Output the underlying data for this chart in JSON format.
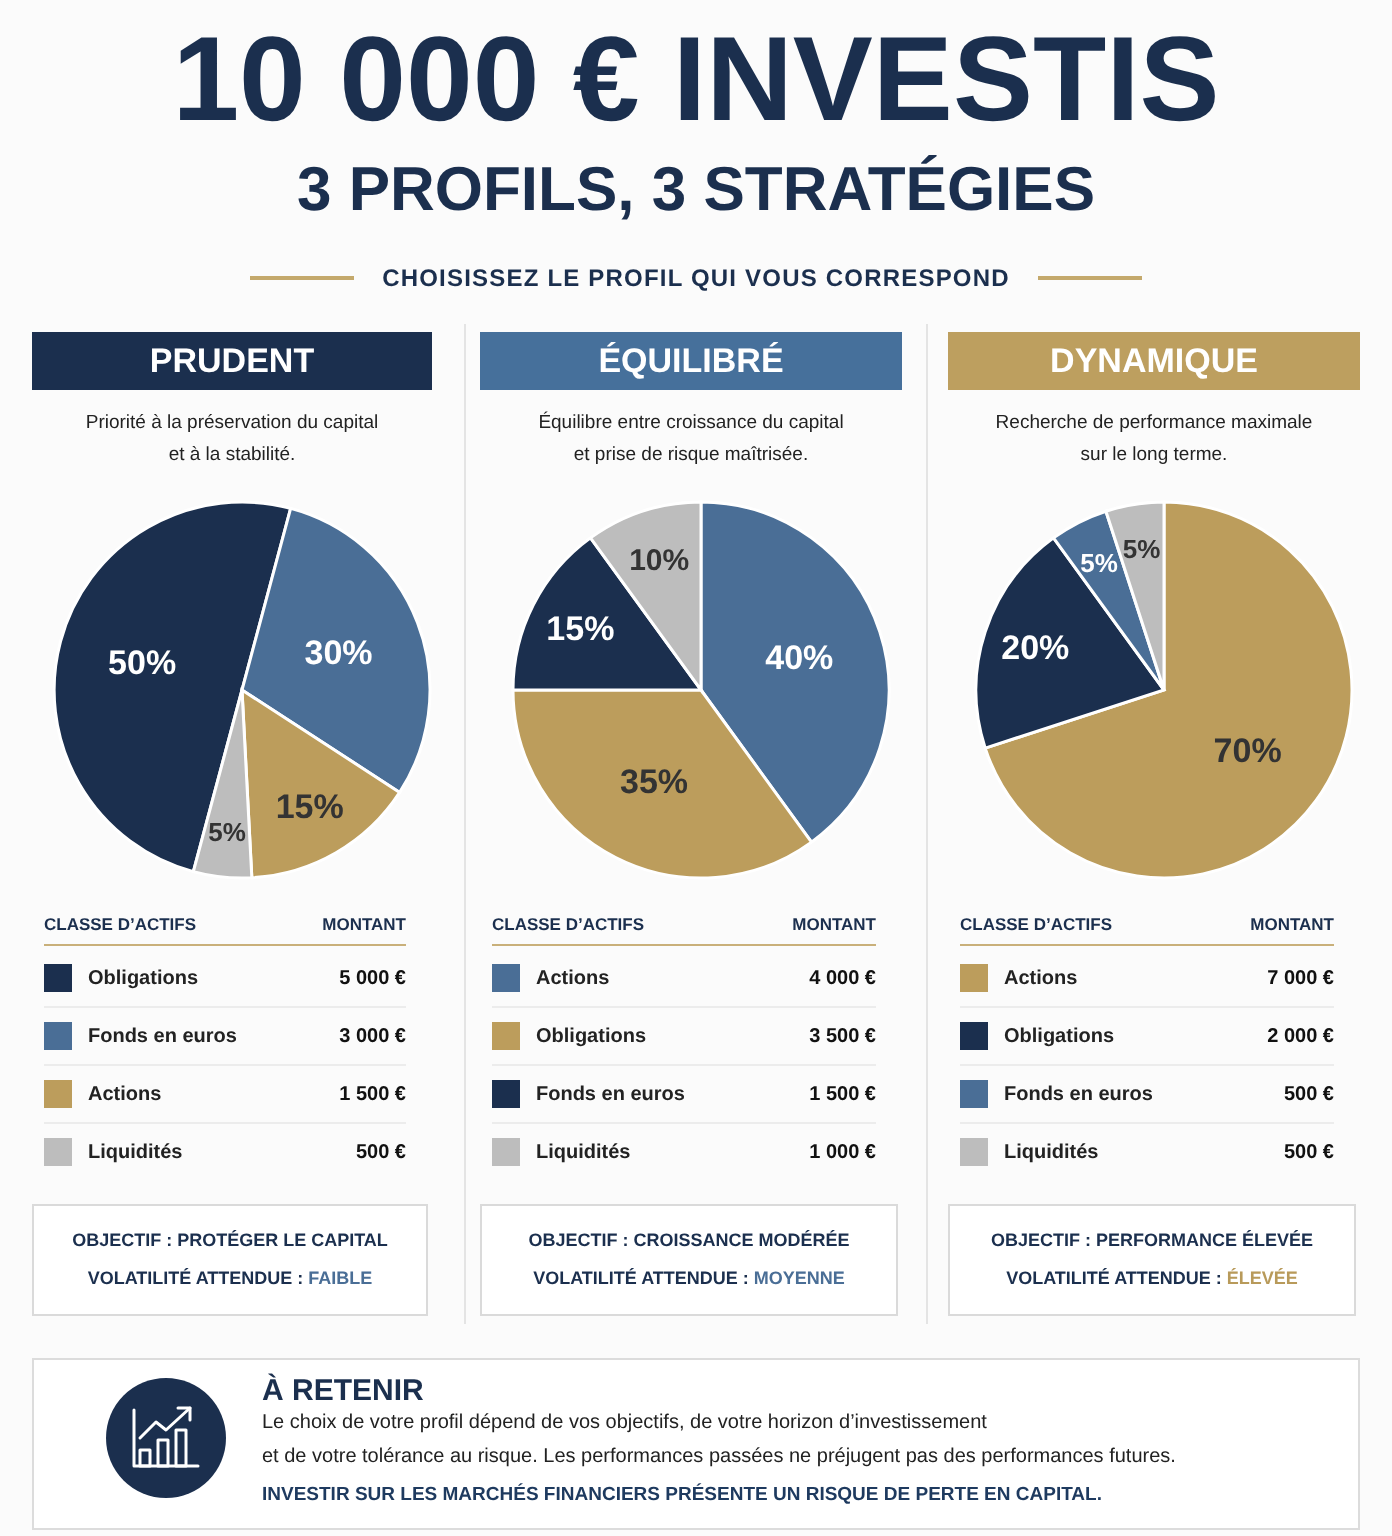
{
  "chart_data": [
    {
      "type": "other",
      "title": "10 000 € INVESTIS",
      "subtitle": "3 PROFILS, 3 STRATÉGIES",
      "annotations": [
        "CHOISISSEZ LE PROFIL QUI VOUS CORRESPOND"
      ]
    },
    {
      "type": "pie",
      "title": "PRUDENT",
      "subtitle": "Priorité à la préservation du capital et à la stabilité.",
      "categories": [
        "Obligations",
        "Fonds en euros",
        "Actions",
        "Liquidités"
      ],
      "values": [
        50,
        30,
        15,
        5
      ],
      "colors": [
        "#1b2f4e",
        "#4a6e96",
        "#bc9d5c",
        "#bdbdbd"
      ],
      "value_labels": [
        "50%",
        "30%",
        "15%",
        "5%"
      ],
      "legend": "bottom",
      "legend_title": "CLASSE D’ACTIFS",
      "annotations": [
        "MONTANT",
        "5 000 €",
        "3 000 €",
        "1 500 €",
        "500 €",
        "OBJECTIF : PROTÉGER LE CAPITAL",
        "VOLATILITÉ ATTENDUE : FAIBLE"
      ]
    },
    {
      "type": "pie",
      "title": "ÉQUILIBRÉ",
      "subtitle": "Équilibre entre croissance du capital et prise de risque maîtrisée.",
      "categories": [
        "Actions",
        "Obligations",
        "Fonds en euros",
        "Liquidités"
      ],
      "values": [
        40,
        35,
        15,
        10
      ],
      "colors": [
        "#4a6e96",
        "#bc9d5c",
        "#1b2f4e",
        "#bdbdbd"
      ],
      "value_labels": [
        "40%",
        "35%",
        "15%",
        "10%"
      ],
      "legend": "bottom",
      "legend_title": "CLASSE D’ACTIFS",
      "annotations": [
        "MONTANT",
        "4 000 €",
        "3 500 €",
        "1 500 €",
        "1 000 €",
        "OBJECTIF : CROISSANCE MODÉRÉE",
        "VOLATILITÉ ATTENDUE : MOYENNE"
      ]
    },
    {
      "type": "pie",
      "title": "DYNAMIQUE",
      "subtitle": "Recherche de performance maximale sur le long terme.",
      "categories": [
        "Actions",
        "Obligations",
        "Fonds en euros",
        "Liquidités"
      ],
      "values": [
        70,
        20,
        5,
        5
      ],
      "colors": [
        "#bc9d5c",
        "#1b2f4e",
        "#4a6e96",
        "#bdbdbd"
      ],
      "value_labels": [
        "70%",
        "20%",
        "5%",
        "5%"
      ],
      "legend": "bottom",
      "legend_title": "CLASSE D’ACTIFS",
      "annotations": [
        "MONTANT",
        "7 000 €",
        "2 000 €",
        "500 €",
        "500 €",
        "OBJECTIF : PERFORMANCE ÉLEVÉE",
        "VOLATILITÉ ATTENDUE : ÉLEVÉE"
      ]
    },
    {
      "type": "other",
      "title": "À RETENIR",
      "annotations": [
        "Le choix de votre profil dépend de vos objectifs, de votre horizon d’investissement",
        "et de votre tolérance au risque. Les performances passées ne préjugent pas des performances futures.",
        "INVESTIR SUR LES MARCHÉS FINANCIERS PRÉSENTE UN RISQUE DE PERTE EN CAPITAL."
      ]
    }
  ]
}
